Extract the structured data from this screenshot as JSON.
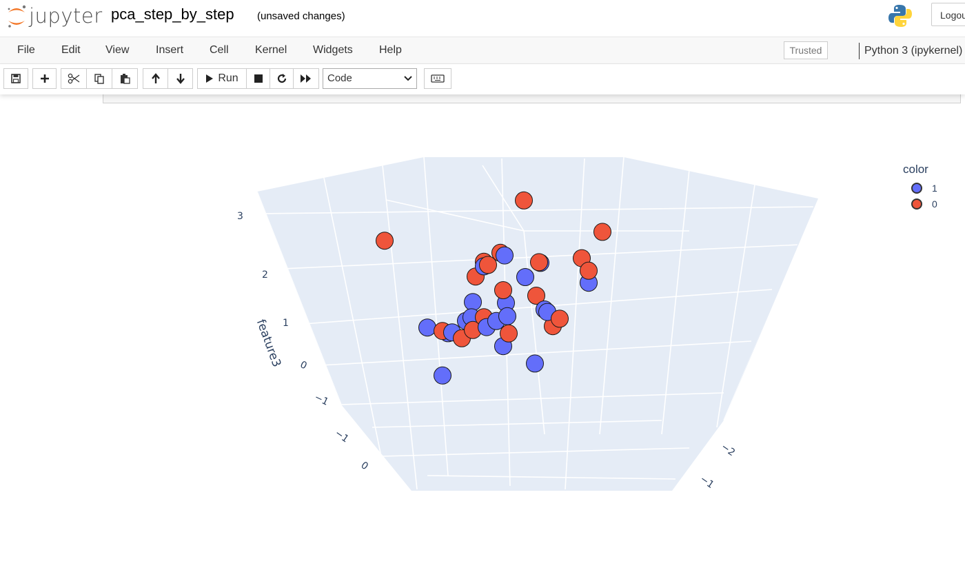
{
  "header": {
    "app_name": "jupyter",
    "notebook_name": "pca_step_by_step",
    "save_status": "(unsaved changes)",
    "logout_label": "Logout"
  },
  "menubar": {
    "items": [
      "File",
      "Edit",
      "View",
      "Insert",
      "Cell",
      "Kernel",
      "Widgets",
      "Help"
    ],
    "trusted_label": "Trusted",
    "kernel_label": "Python 3 (ipykernel)"
  },
  "toolbar": {
    "run_label": "Run",
    "cell_type": "Code"
  },
  "colors": {
    "class_1": "#636efa",
    "class_0": "#ef553b",
    "scene_bg": "#e5ecf6",
    "jupyter_orange": "#f37626"
  },
  "chart_data": {
    "type": "scatter3d",
    "z_axis_label": "feature3",
    "z_ticks": [
      "3",
      "2",
      "1",
      "0",
      "−1"
    ],
    "front_axis_ticks": [
      "−1",
      "0"
    ],
    "right_axis_ticks": [
      "−2",
      "−1"
    ],
    "legend_title": "color",
    "legend": [
      {
        "label": "1",
        "color": "#636efa"
      },
      {
        "label": "0",
        "color": "#ef553b"
      }
    ],
    "series": [
      {
        "name": "1",
        "color": "#636efa",
        "points": [
          [
            1.2,
            -1.3,
            0.9
          ],
          [
            0.4,
            -1.0,
            0.3
          ],
          [
            -1.4,
            0.1,
            -1.2
          ],
          [
            0.3,
            -0.7,
            -1.1
          ],
          [
            0.2,
            -0.5,
            1.0
          ],
          [
            0.5,
            -0.6,
            1.3
          ],
          [
            -0.1,
            -0.2,
            1.5
          ],
          [
            0.4,
            0.5,
            -0.2
          ],
          [
            -0.2,
            0.3,
            -0.5
          ],
          [
            0.6,
            -0.6,
            0.1
          ],
          [
            -0.7,
            0.8,
            -0.7
          ],
          [
            0.0,
            0.0,
            -0.9
          ],
          [
            -0.4,
            0.5,
            0.1
          ],
          [
            -0.5,
            0.4,
            -0.2
          ],
          [
            0.1,
            0.4,
            -0.5
          ],
          [
            -0.3,
            0.9,
            -0.6
          ],
          [
            0.3,
            0.3,
            -0.4
          ],
          [
            -0.9,
            1.4,
            -0.8
          ],
          [
            -0.6,
            1.1,
            -0.9
          ],
          [
            -0.6,
            -0.2,
            1.4
          ]
        ]
      },
      {
        "name": "0",
        "color": "#ef553b",
        "points": [
          [
            0.1,
            -0.6,
            3.0
          ],
          [
            1.4,
            -1.5,
            2.2
          ],
          [
            -0.2,
            -0.2,
            1.6
          ],
          [
            -0.4,
            0.1,
            1.3
          ],
          [
            0.4,
            -0.7,
            1.4
          ],
          [
            1.1,
            -1.2,
            1.5
          ],
          [
            1.2,
            -1.3,
            1.2
          ],
          [
            -0.6,
            0.1,
            1.0
          ],
          [
            -2.0,
            1.3,
            1.8
          ],
          [
            0.0,
            0.0,
            0.5
          ],
          [
            -1.2,
            0.4,
            -0.3
          ],
          [
            0.6,
            -0.3,
            0.3
          ],
          [
            -0.2,
            0.4,
            -0.3
          ],
          [
            1.1,
            -0.4,
            -0.4
          ],
          [
            1.0,
            -0.3,
            -0.6
          ],
          [
            0.2,
            0.1,
            -0.7
          ],
          [
            -0.4,
            0.5,
            -0.6
          ],
          [
            -0.4,
            0.9,
            -1.0
          ],
          [
            -0.5,
            -0.2,
            1.4
          ]
        ]
      }
    ]
  }
}
